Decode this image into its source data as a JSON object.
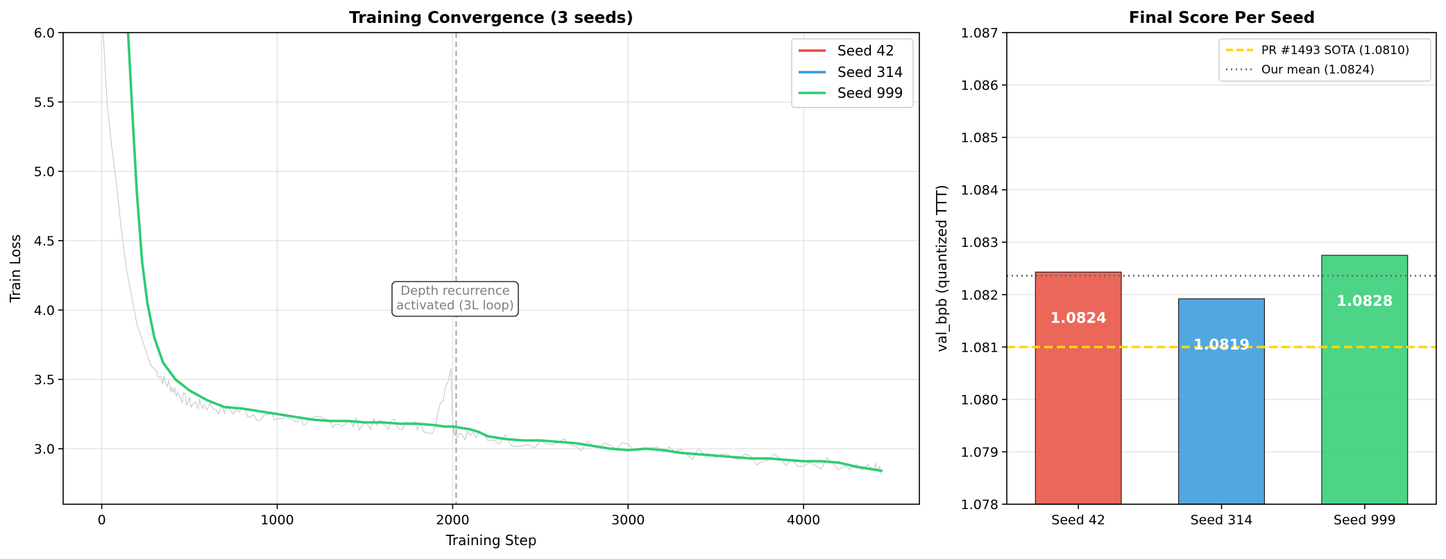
{
  "chart_data": [
    {
      "type": "line",
      "title": "Training Convergence (3 seeds)",
      "xlabel": "Training Step",
      "ylabel": "Train Loss",
      "xlim": [
        -220,
        4660
      ],
      "ylim": [
        2.6,
        6.0
      ],
      "xticks": [
        0,
        1000,
        2000,
        3000,
        4000
      ],
      "yticks": [
        3.0,
        3.5,
        4.0,
        4.5,
        5.0,
        5.5,
        6.0
      ],
      "xtick_labels": [
        "0",
        "1000",
        "2000",
        "3000",
        "4000"
      ],
      "ytick_labels": [
        "3.0",
        "3.5",
        "4.0",
        "4.5",
        "5.0",
        "5.5",
        "6.0"
      ],
      "grid": true,
      "legend_position": "top-right",
      "series": [
        {
          "name": "Seed 42",
          "color": "#e74c3c"
        },
        {
          "name": "Seed 314",
          "color": "#3498db"
        },
        {
          "name": "Seed 999",
          "color": "#2ecc71",
          "x": [
            150,
            180,
            200,
            230,
            260,
            300,
            350,
            420,
            500,
            600,
            700,
            800,
            900,
            1000,
            1100,
            1200,
            1300,
            1400,
            1500,
            1600,
            1700,
            1800,
            1900,
            1950,
            2000,
            2050,
            2100,
            2150,
            2200,
            2300,
            2400,
            2500,
            2600,
            2700,
            2800,
            2900,
            3000,
            3100,
            3200,
            3300,
            3400,
            3500,
            3600,
            3700,
            3800,
            3900,
            4000,
            4100,
            4200,
            4300,
            4400,
            4450
          ],
          "y": [
            6.0,
            5.3,
            4.85,
            4.35,
            4.05,
            3.8,
            3.62,
            3.5,
            3.42,
            3.35,
            3.3,
            3.29,
            3.27,
            3.25,
            3.23,
            3.21,
            3.2,
            3.2,
            3.19,
            3.19,
            3.18,
            3.18,
            3.17,
            3.16,
            3.16,
            3.15,
            3.14,
            3.12,
            3.09,
            3.07,
            3.06,
            3.06,
            3.05,
            3.04,
            3.02,
            3.0,
            2.99,
            3.0,
            2.99,
            2.97,
            2.96,
            2.95,
            2.94,
            2.93,
            2.93,
            2.92,
            2.91,
            2.91,
            2.9,
            2.87,
            2.85,
            2.84
          ]
        }
      ],
      "raw_trace": {
        "color": "#c8c8c8",
        "x": [
          8,
          30,
          55,
          80,
          110,
          140,
          170,
          200,
          240,
          280,
          320,
          360,
          400,
          450,
          500,
          550,
          600,
          700,
          800,
          900,
          1000,
          1100,
          1200,
          1300,
          1400,
          1500,
          1600,
          1700,
          1800,
          1900,
          1990,
          2000,
          2010,
          2100,
          2200,
          2400,
          2600,
          2800,
          3000,
          3200,
          3400,
          3600,
          3800,
          4000,
          4200,
          4400,
          4450
        ],
        "y": [
          6.0,
          5.5,
          5.2,
          4.95,
          4.6,
          4.3,
          4.1,
          3.9,
          3.75,
          3.6,
          3.55,
          3.48,
          3.44,
          3.38,
          3.33,
          3.32,
          3.31,
          3.28,
          3.27,
          3.24,
          3.22,
          3.22,
          3.19,
          3.2,
          3.18,
          3.18,
          3.17,
          3.18,
          3.16,
          3.15,
          3.6,
          3.2,
          3.12,
          3.1,
          3.08,
          3.05,
          3.04,
          3.01,
          3.0,
          2.97,
          2.96,
          2.93,
          2.92,
          2.9,
          2.89,
          2.86,
          2.84
        ]
      },
      "vline": {
        "x": 2020,
        "label": "Depth recurrence\nactivated (3L loop)"
      }
    },
    {
      "type": "bar",
      "title": "Final Score Per Seed",
      "xlabel": "",
      "ylabel": "val_bpb (quantized TTT)",
      "categories": [
        "Seed 42",
        "Seed 314",
        "Seed 999"
      ],
      "values": [
        1.08243,
        1.08192,
        1.08275
      ],
      "value_labels": [
        "1.0824",
        "1.0819",
        "1.0828"
      ],
      "colors": [
        "#e74c3c",
        "#3498db",
        "#2ecc71"
      ],
      "ylim": [
        1.078,
        1.087
      ],
      "yticks": [
        1.078,
        1.079,
        1.08,
        1.081,
        1.082,
        1.083,
        1.084,
        1.085,
        1.086,
        1.087
      ],
      "ytick_labels": [
        "1.078",
        "1.079",
        "1.080",
        "1.081",
        "1.082",
        "1.083",
        "1.084",
        "1.085",
        "1.086",
        "1.087"
      ],
      "grid": true,
      "legend_position": "top-right",
      "hlines": [
        {
          "name": "PR #1493 SOTA (1.0810)",
          "y": 1.081,
          "color": "#ffd700",
          "style": "dashed"
        },
        {
          "name": "Our mean (1.0824)",
          "y": 1.08236,
          "color": "#666666",
          "style": "dotted"
        }
      ]
    }
  ]
}
